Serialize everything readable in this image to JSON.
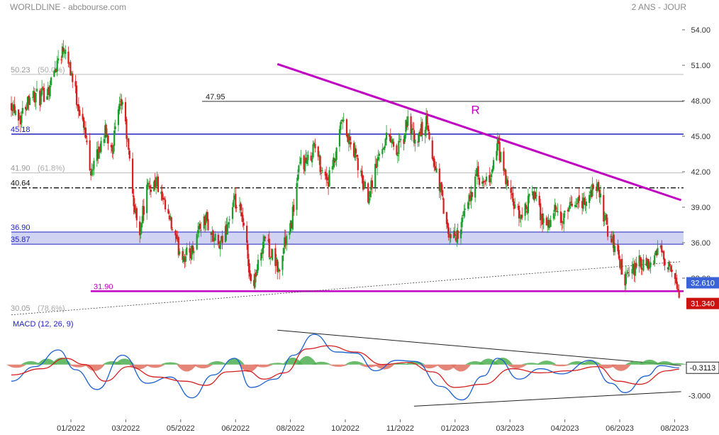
{
  "header": {
    "title": "WORLDLINE - abcbourse.com",
    "period": "2 ANS - JOUR"
  },
  "colors": {
    "bull": "#1a9e2a",
    "bear": "#d42020",
    "resistance": "#c000c0",
    "band": "#2020c0",
    "band_fill": "#c8ccf0",
    "macd_line": "#1a5fd0",
    "signal_line": "#d42020",
    "hist_pos": "#4caf50",
    "hist_neg": "#e07060",
    "badge_blue": "#3a63d8",
    "badge_red": "#cc1111"
  },
  "chart_data": [
    {
      "type": "candlestick",
      "xlabel": "",
      "ylabel": "",
      "x_ticks": [
        "01/2022",
        "03/2022",
        "05/2022",
        "06/2022",
        "08/2022",
        "10/2022",
        "11/2022",
        "01/2023",
        "03/2023",
        "04/2023",
        "06/2023",
        "08/2023"
      ],
      "y_ticks": [
        "54.00",
        "51.00",
        "48.00",
        "45.00",
        "42.00",
        "39.00",
        "36.00",
        "33.00"
      ],
      "ylim": [
        29.5,
        55.5
      ],
      "grid": false,
      "close_path": [
        [
          "2021-11-01",
          47.9
        ],
        [
          "2021-11-10",
          46.6
        ],
        [
          "2021-11-19",
          48.6
        ],
        [
          "2021-11-29",
          48.2
        ],
        [
          "2021-12-08",
          49.1
        ],
        [
          "2021-12-17",
          51.6
        ],
        [
          "2021-12-24",
          52.8
        ],
        [
          "2022-01-03",
          48.6
        ],
        [
          "2022-01-12",
          45.4
        ],
        [
          "2022-01-18",
          42.2
        ],
        [
          "2022-01-24",
          43.2
        ],
        [
          "2022-01-31",
          45.4
        ],
        [
          "2022-02-08",
          44.2
        ],
        [
          "2022-02-14",
          46.8
        ],
        [
          "2022-02-18",
          48.0
        ],
        [
          "2022-02-24",
          43.6
        ],
        [
          "2022-03-02",
          38.6
        ],
        [
          "2022-03-07",
          37.2
        ],
        [
          "2022-03-14",
          40.4
        ],
        [
          "2022-03-23",
          41.3
        ],
        [
          "2022-03-30",
          39.2
        ],
        [
          "2022-04-06",
          37.6
        ],
        [
          "2022-04-13",
          35.6
        ],
        [
          "2022-04-20",
          34.9
        ],
        [
          "2022-04-27",
          35.3
        ],
        [
          "2022-05-04",
          37.3
        ],
        [
          "2022-05-11",
          38.0
        ],
        [
          "2022-05-18",
          36.3
        ],
        [
          "2022-05-25",
          35.6
        ],
        [
          "2022-06-01",
          37.6
        ],
        [
          "2022-06-08",
          39.3
        ],
        [
          "2022-06-14",
          38.4
        ],
        [
          "2022-06-20",
          35.6
        ],
        [
          "2022-06-24",
          32.4
        ],
        [
          "2022-06-30",
          33.6
        ],
        [
          "2022-07-07",
          36.6
        ],
        [
          "2022-07-12",
          35.4
        ],
        [
          "2022-07-18",
          34.3
        ],
        [
          "2022-07-22",
          33.4
        ],
        [
          "2022-07-27",
          36.1
        ],
        [
          "2022-08-01",
          36.6
        ],
        [
          "2022-08-05",
          39.2
        ],
        [
          "2022-08-12",
          43.0
        ],
        [
          "2022-08-18",
          42.6
        ],
        [
          "2022-08-25",
          44.3
        ],
        [
          "2022-09-01",
          42.3
        ],
        [
          "2022-09-08",
          41.2
        ],
        [
          "2022-09-16",
          43.4
        ],
        [
          "2022-09-21",
          46.3
        ],
        [
          "2022-09-28",
          44.6
        ],
        [
          "2022-10-05",
          43.3
        ],
        [
          "2022-10-11",
          41.1
        ],
        [
          "2022-10-17",
          40.1
        ],
        [
          "2022-10-24",
          42.3
        ],
        [
          "2022-10-31",
          44.3
        ],
        [
          "2022-11-07",
          45.2
        ],
        [
          "2022-11-14",
          43.6
        ],
        [
          "2022-11-21",
          44.8
        ],
        [
          "2022-11-25",
          46.6
        ],
        [
          "2022-12-02",
          44.2
        ],
        [
          "2022-12-07",
          45.3
        ],
        [
          "2022-12-13",
          46.1
        ],
        [
          "2022-12-19",
          43.3
        ],
        [
          "2022-12-27",
          40.6
        ],
        [
          "2023-01-03",
          36.6
        ],
        [
          "2023-01-10",
          36.4
        ],
        [
          "2023-01-17",
          37.6
        ],
        [
          "2023-01-24",
          39.6
        ],
        [
          "2023-01-31",
          41.8
        ],
        [
          "2023-02-07",
          40.6
        ],
        [
          "2023-02-14",
          41.6
        ],
        [
          "2023-02-21",
          44.3
        ],
        [
          "2023-02-28",
          41.6
        ],
        [
          "2023-03-07",
          39.6
        ],
        [
          "2023-03-14",
          38.1
        ],
        [
          "2023-03-21",
          39.0
        ],
        [
          "2023-03-28",
          40.3
        ],
        [
          "2023-04-04",
          38.4
        ],
        [
          "2023-04-11",
          37.5
        ],
        [
          "2023-04-18",
          38.6
        ],
        [
          "2023-04-25",
          37.7
        ],
        [
          "2023-05-02",
          38.7
        ],
        [
          "2023-05-09",
          39.7
        ],
        [
          "2023-05-16",
          39.3
        ],
        [
          "2023-05-23",
          40.3
        ],
        [
          "2023-05-30",
          40.6
        ],
        [
          "2023-06-06",
          38.1
        ],
        [
          "2023-06-12",
          36.3
        ],
        [
          "2023-06-19",
          35.0
        ],
        [
          "2023-06-26",
          32.6
        ],
        [
          "2023-07-03",
          33.6
        ],
        [
          "2023-07-10",
          34.3
        ],
        [
          "2023-07-17",
          33.7
        ],
        [
          "2023-07-24",
          34.4
        ],
        [
          "2023-07-31",
          35.7
        ],
        [
          "2023-08-07",
          34.1
        ],
        [
          "2023-08-14",
          32.6
        ],
        [
          "2023-08-18",
          31.34
        ]
      ],
      "last_close_badge": "31.340",
      "levels": [
        {
          "label": "50.23",
          "extra": "(50.0%)",
          "value": 50.23,
          "style": "gray"
        },
        {
          "label": "47.95",
          "value": 47.95,
          "style": "black"
        },
        {
          "label": "45.18",
          "value": 45.18,
          "style": "blue"
        },
        {
          "label": "41.90",
          "extra": "(61.8%)",
          "value": 41.9,
          "style": "gray"
        },
        {
          "label": "40.64",
          "value": 40.64,
          "style": "dashdot"
        },
        {
          "label": "36.90",
          "value": 36.9,
          "style": "band"
        },
        {
          "label": "35.87",
          "value": 35.87,
          "style": "band"
        },
        {
          "label": "31.90",
          "value": 31.9,
          "style": "magenta"
        },
        {
          "label": "30.05",
          "extra": "(78.6%)",
          "value": 30.05,
          "style": "gray"
        }
      ],
      "trendlines": [
        {
          "name": "resistance",
          "from": [
            "2022-07-20",
            51.1
          ],
          "to": [
            "2023-08-20",
            39.6
          ]
        },
        {
          "name": "support",
          "from": [
            "2021-11-01",
            29.9
          ],
          "to": [
            "2023-08-20",
            34.4
          ]
        }
      ],
      "annotation": {
        "text": "R",
        "at": [
          "2023-01-26",
          46.9
        ]
      },
      "badge_value": "32.610"
    },
    {
      "type": "line",
      "title": "MACD (12, 26, 9)",
      "y_ticks": [
        "-3.000"
      ],
      "badge_value": "-0.3113",
      "ylim": [
        -5.2,
        4.0
      ],
      "series": [
        {
          "values": [
            [
              "2021-11-01",
              -1.6
            ],
            [
              "2021-11-24",
              -0.2
            ],
            [
              "2021-12-17",
              1.4
            ],
            [
              "2022-01-03",
              -0.5
            ],
            [
              "2022-01-24",
              -2.4
            ],
            [
              "2022-02-18",
              0.9
            ],
            [
              "2022-03-14",
              -1.8
            ],
            [
              "2022-04-06",
              -1.2
            ],
            [
              "2022-04-27",
              -3.2
            ],
            [
              "2022-05-18",
              -1.0
            ],
            [
              "2022-06-08",
              0.6
            ],
            [
              "2022-06-24",
              -2.2
            ],
            [
              "2022-07-18",
              -1.4
            ],
            [
              "2022-08-05",
              0.9
            ],
            [
              "2022-08-25",
              2.9
            ],
            [
              "2022-09-16",
              1.2
            ],
            [
              "2022-10-05",
              1.1
            ],
            [
              "2022-10-24",
              -0.6
            ],
            [
              "2022-11-14",
              0.4
            ],
            [
              "2022-12-02",
              0.3
            ],
            [
              "2022-12-27",
              -2.1
            ],
            [
              "2023-01-17",
              -3.4
            ],
            [
              "2023-02-07",
              -1.1
            ],
            [
              "2023-02-21",
              0.6
            ],
            [
              "2023-03-14",
              -1.4
            ],
            [
              "2023-04-04",
              -0.4
            ],
            [
              "2023-04-25",
              -0.9
            ],
            [
              "2023-05-23",
              0.4
            ],
            [
              "2023-06-12",
              -1.8
            ],
            [
              "2023-06-26",
              -2.7
            ],
            [
              "2023-07-17",
              -1.1
            ],
            [
              "2023-07-31",
              -0.1
            ],
            [
              "2023-08-18",
              -0.31
            ]
          ]
        },
        {
          "values": [
            [
              "2021-11-01",
              -1.0
            ],
            [
              "2021-12-01",
              -0.4
            ],
            [
              "2021-12-24",
              0.6
            ],
            [
              "2022-01-12",
              0.0
            ],
            [
              "2022-02-01",
              -1.6
            ],
            [
              "2022-02-24",
              -0.2
            ],
            [
              "2022-03-23",
              -1.2
            ],
            [
              "2022-04-20",
              -1.6
            ],
            [
              "2022-05-11",
              -2.0
            ],
            [
              "2022-06-01",
              -0.7
            ],
            [
              "2022-06-20",
              -0.6
            ],
            [
              "2022-07-07",
              -1.4
            ],
            [
              "2022-07-27",
              -0.8
            ],
            [
              "2022-08-18",
              1.5
            ],
            [
              "2022-09-08",
              1.8
            ],
            [
              "2022-10-05",
              1.2
            ],
            [
              "2022-10-31",
              0.0
            ],
            [
              "2022-11-25",
              0.2
            ],
            [
              "2022-12-19",
              -0.7
            ],
            [
              "2023-01-10",
              -2.2
            ],
            [
              "2023-02-07",
              -1.9
            ],
            [
              "2023-03-07",
              -0.4
            ],
            [
              "2023-04-04",
              -0.8
            ],
            [
              "2023-05-02",
              -0.6
            ],
            [
              "2023-05-30",
              -0.2
            ],
            [
              "2023-06-19",
              -1.6
            ],
            [
              "2023-07-10",
              -1.9
            ],
            [
              "2023-08-07",
              -0.6
            ],
            [
              "2023-08-18",
              -0.45
            ]
          ]
        }
      ],
      "histogram": [
        [
          "2021-11-06",
          -0.5
        ],
        [
          "2021-11-20",
          0.5
        ],
        [
          "2021-12-06",
          1.0
        ],
        [
          "2021-12-20",
          1.2
        ],
        [
          "2022-01-06",
          -0.4
        ],
        [
          "2022-01-22",
          -1.1
        ],
        [
          "2022-02-08",
          0.5
        ],
        [
          "2022-02-20",
          1.0
        ],
        [
          "2022-03-06",
          -0.8
        ],
        [
          "2022-03-22",
          -0.5
        ],
        [
          "2022-04-06",
          0.3
        ],
        [
          "2022-04-22",
          -1.2
        ],
        [
          "2022-05-08",
          -0.6
        ],
        [
          "2022-05-22",
          0.5
        ],
        [
          "2022-06-08",
          1.1
        ],
        [
          "2022-06-22",
          -1.3
        ],
        [
          "2022-07-06",
          -0.4
        ],
        [
          "2022-07-20",
          0.2
        ],
        [
          "2022-08-04",
          1.2
        ],
        [
          "2022-08-18",
          1.5
        ],
        [
          "2022-09-01",
          0.4
        ],
        [
          "2022-09-18",
          -0.3
        ],
        [
          "2022-10-04",
          0.5
        ],
        [
          "2022-10-18",
          -0.4
        ],
        [
          "2022-11-02",
          -0.8
        ],
        [
          "2022-11-16",
          0.2
        ],
        [
          "2022-12-02",
          0.5
        ],
        [
          "2022-12-16",
          -0.6
        ],
        [
          "2023-01-02",
          -1.0
        ],
        [
          "2023-01-16",
          -1.2
        ],
        [
          "2023-01-30",
          0.5
        ],
        [
          "2023-02-12",
          1.0
        ],
        [
          "2023-02-26",
          1.2
        ],
        [
          "2023-03-12",
          -0.6
        ],
        [
          "2023-03-26",
          0.2
        ],
        [
          "2023-04-10",
          0.6
        ],
        [
          "2023-04-24",
          -0.2
        ],
        [
          "2023-05-10",
          0.5
        ],
        [
          "2023-05-24",
          0.6
        ],
        [
          "2023-06-08",
          -0.6
        ],
        [
          "2023-06-22",
          -1.1
        ],
        [
          "2023-07-06",
          0.5
        ],
        [
          "2023-07-20",
          0.8
        ],
        [
          "2023-08-04",
          0.5
        ],
        [
          "2023-08-16",
          0.15
        ]
      ],
      "trendlines": [
        {
          "name": "upper",
          "from": [
            "2022-07-20",
            3.3
          ],
          "to": [
            "2023-08-20",
            -0.1
          ]
        },
        {
          "name": "lower",
          "from": [
            "2022-12-01",
            -4.0
          ],
          "to": [
            "2023-08-20",
            -2.6
          ]
        }
      ]
    }
  ]
}
